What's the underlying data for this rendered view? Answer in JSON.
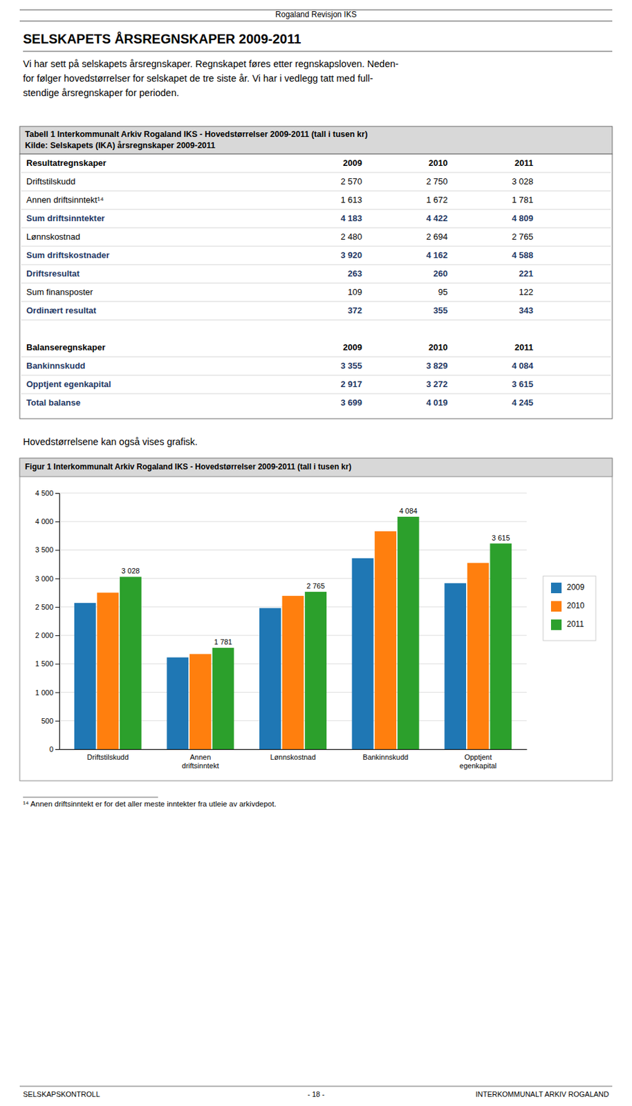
{
  "page_title": "Rogaland Revisjon IKS",
  "section_title": "SELSKAPETS ÅRSREGNSKAPER 2009-2011",
  "intro_lines": [
    "Vi har sett på selskapets årsregnskaper. Regnskapet føres etter regnskapsloven. Neden-",
    "for følger hovedstørrelser for selskapet de tre siste år. Vi har i vedlegg tatt med full-",
    "stendige årsregnskaper for perioden."
  ],
  "table": {
    "title_lines": [
      "Tabell 1 Interkommunalt Arkiv Rogaland IKS - Hovedstørrelser 2009-2011 (tall i tusen kr)",
      "Kilde: Selskapets (IKA) årsregnskaper 2009-2011"
    ],
    "resultat_rows": [
      {
        "label": "Resultatregnskaper",
        "values": [
          "2009",
          "2010",
          "2011"
        ],
        "bold": true
      },
      {
        "label": "Driftstilskudd",
        "values": [
          "2 570",
          "2 750",
          "3 028"
        ],
        "bold": false
      },
      {
        "label": "Annen driftsinntekt¹⁴",
        "values": [
          "1 613",
          "1 672",
          "1 781"
        ],
        "bold": false
      },
      {
        "label": "Sum driftsinntekter",
        "values": [
          "4 183",
          "4 422",
          "4 809"
        ],
        "bold": true,
        "color": "#1F3864"
      },
      {
        "label": "Lønnskostnad",
        "values": [
          "2 480",
          "2 694",
          "2 765"
        ],
        "bold": false
      },
      {
        "label": "Sum driftskostnader",
        "values": [
          "3 920",
          "4 162",
          "4 588"
        ],
        "bold": true,
        "color": "#1F3864"
      },
      {
        "label": "Driftsresultat",
        "values": [
          "263",
          "260",
          "221"
        ],
        "bold": true,
        "color": "#1F3864"
      },
      {
        "label": "Sum finansposter",
        "values": [
          "109",
          "95",
          "122"
        ],
        "bold": false
      },
      {
        "label": "Ordinært resultat",
        "values": [
          "372",
          "355",
          "343"
        ],
        "bold": true,
        "color": "#1F3864"
      }
    ],
    "balanse_rows": [
      {
        "label": "Balanseregnskaper",
        "values": [
          "2009",
          "2010",
          "2011"
        ],
        "bold": true
      },
      {
        "label": "Bankinnskudd",
        "values": [
          "3 355",
          "3 829",
          "4 084"
        ],
        "bold": true,
        "color": "#1F3864"
      },
      {
        "label": "Opptjent egenkapital",
        "values": [
          "2 917",
          "3 272",
          "3 615"
        ],
        "bold": true,
        "color": "#1F3864"
      },
      {
        "label": "Total balanse",
        "values": [
          "3 699",
          "4 019",
          "4 245"
        ],
        "bold": true,
        "color": "#1F3864"
      }
    ]
  },
  "between_text": "Hovedstørrelsene kan også vises grafisk.",
  "chart_data": {
    "type": "bar",
    "title": "Figur 1 Interkommunalt Arkiv Rogaland IKS - Hovedstørrelser 2009-2011 (tall i tusen kr)",
    "categories": [
      "Driftstilskudd",
      "Annen\ndriftsinntekt",
      "Lønnskostnad",
      "Bankinnskudd",
      "Opptjent\negenkapital"
    ],
    "series": [
      {
        "name": "2009",
        "values": [
          2570,
          1613,
          2480,
          3355,
          2917
        ]
      },
      {
        "name": "2010",
        "values": [
          2750,
          1672,
          2694,
          3829,
          3272
        ]
      },
      {
        "name": "2011",
        "values": [
          3028,
          1781,
          2765,
          4084,
          3615
        ],
        "data_labels": true,
        "value_labels": [
          "3 028",
          "1 781",
          "2 765",
          "4 084",
          "3 615"
        ]
      }
    ],
    "ylim": [
      0,
      4500
    ],
    "yticks": [
      0,
      500,
      {
        "value": 1000,
        "label": "1 000"
      },
      {
        "value": 1500,
        "label": "1 500"
      },
      {
        "value": 2000,
        "label": "2 000"
      },
      {
        "value": 2500,
        "label": "2 500"
      },
      {
        "value": 3000,
        "label": "3 000"
      },
      {
        "value": 3500,
        "label": "3 500"
      },
      {
        "value": 4000,
        "label": "4 000"
      },
      {
        "value": 4500,
        "label": "4 500"
      }
    ],
    "grid": true,
    "legend": "right"
  },
  "footnote": "¹⁴ Annen driftsinntekt er for det aller meste inntekter fra utleie av arkivdepot.",
  "footer": {
    "left": "SELSKAPSKONTROLL",
    "middle": "- 18 -",
    "right": "INTERKOMMUNALT ARKIV ROGALAND"
  }
}
